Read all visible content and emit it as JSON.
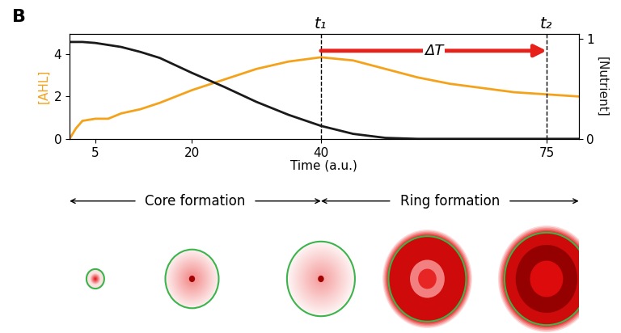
{
  "panel_label": "B",
  "chart_data": {
    "type": "line",
    "x": [
      1,
      2,
      3,
      5,
      7,
      9,
      12,
      15,
      20,
      25,
      30,
      35,
      40,
      45,
      50,
      55,
      60,
      65,
      70,
      75,
      80
    ],
    "series": [
      {
        "color": "#f5a21b",
        "values": [
          0,
          0.5,
          0.85,
          0.95,
          0.95,
          1.2,
          1.4,
          1.7,
          2.3,
          2.8,
          3.3,
          3.65,
          3.85,
          3.7,
          3.3,
          2.9,
          2.6,
          2.4,
          2.2,
          2.1,
          2.0
        ]
      },
      {
        "color": "#1a1a1a",
        "axis": "y2",
        "values": [
          0.97,
          0.97,
          0.97,
          0.96,
          0.94,
          0.92,
          0.87,
          0.81,
          0.66,
          0.52,
          0.37,
          0.24,
          0.13,
          0.05,
          0.01,
          0,
          0,
          0,
          0,
          0,
          0
        ]
      }
    ],
    "xlabel": "Time (a.u.)",
    "ylabel": "[AHL]",
    "y2label": "[Nutrient]",
    "xlim": [
      1,
      80
    ],
    "xticks": [
      5,
      20,
      40,
      75
    ],
    "ylim": [
      0,
      4.95
    ],
    "yticks": [
      0,
      2,
      4
    ],
    "y2lim": [
      0,
      1.05
    ],
    "y2ticks": [
      0,
      1
    ],
    "vlines": [
      {
        "x": 40,
        "label": "t₁"
      },
      {
        "x": 75,
        "label": "t₂"
      }
    ],
    "interval": {
      "start": 40,
      "end": 75,
      "label": "ΔT",
      "color": "#e8201a"
    }
  },
  "phases": [
    {
      "label": "Core formation",
      "start": 1,
      "end": 40
    },
    {
      "label": "Ring formation",
      "start": 40,
      "end": 80
    }
  ]
}
